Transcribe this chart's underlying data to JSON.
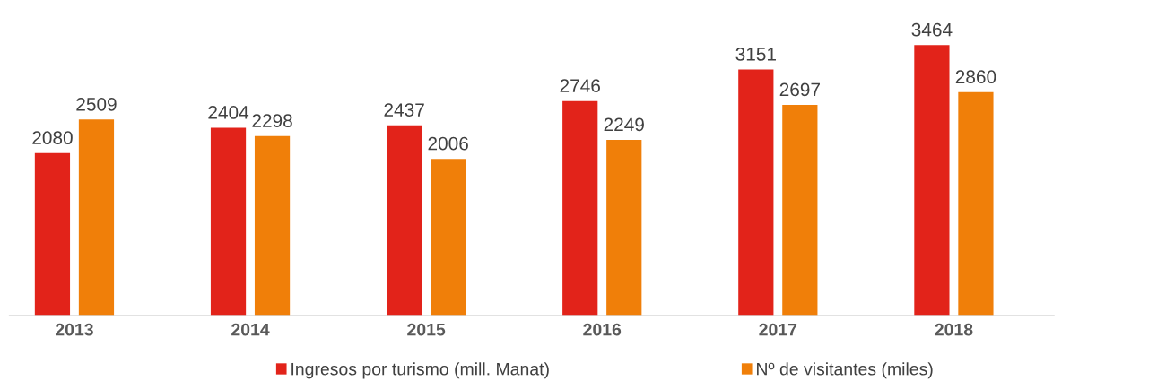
{
  "chart_data": {
    "type": "bar",
    "categories": [
      "2013",
      "2014",
      "2015",
      "2016",
      "2017",
      "2018"
    ],
    "series": [
      {
        "name": "Ingresos por turismo (mill. Manat)",
        "color": "#e2231a",
        "values": [
          2080,
          2404,
          2437,
          2746,
          3151,
          3464
        ]
      },
      {
        "name": "Nº de visitantes (miles)",
        "color": "#f07f09",
        "values": [
          2509,
          2298,
          2006,
          2249,
          2697,
          2860
        ]
      }
    ],
    "data_labels": true,
    "grid": false,
    "legend": "bottom",
    "tick_labels": "x"
  }
}
